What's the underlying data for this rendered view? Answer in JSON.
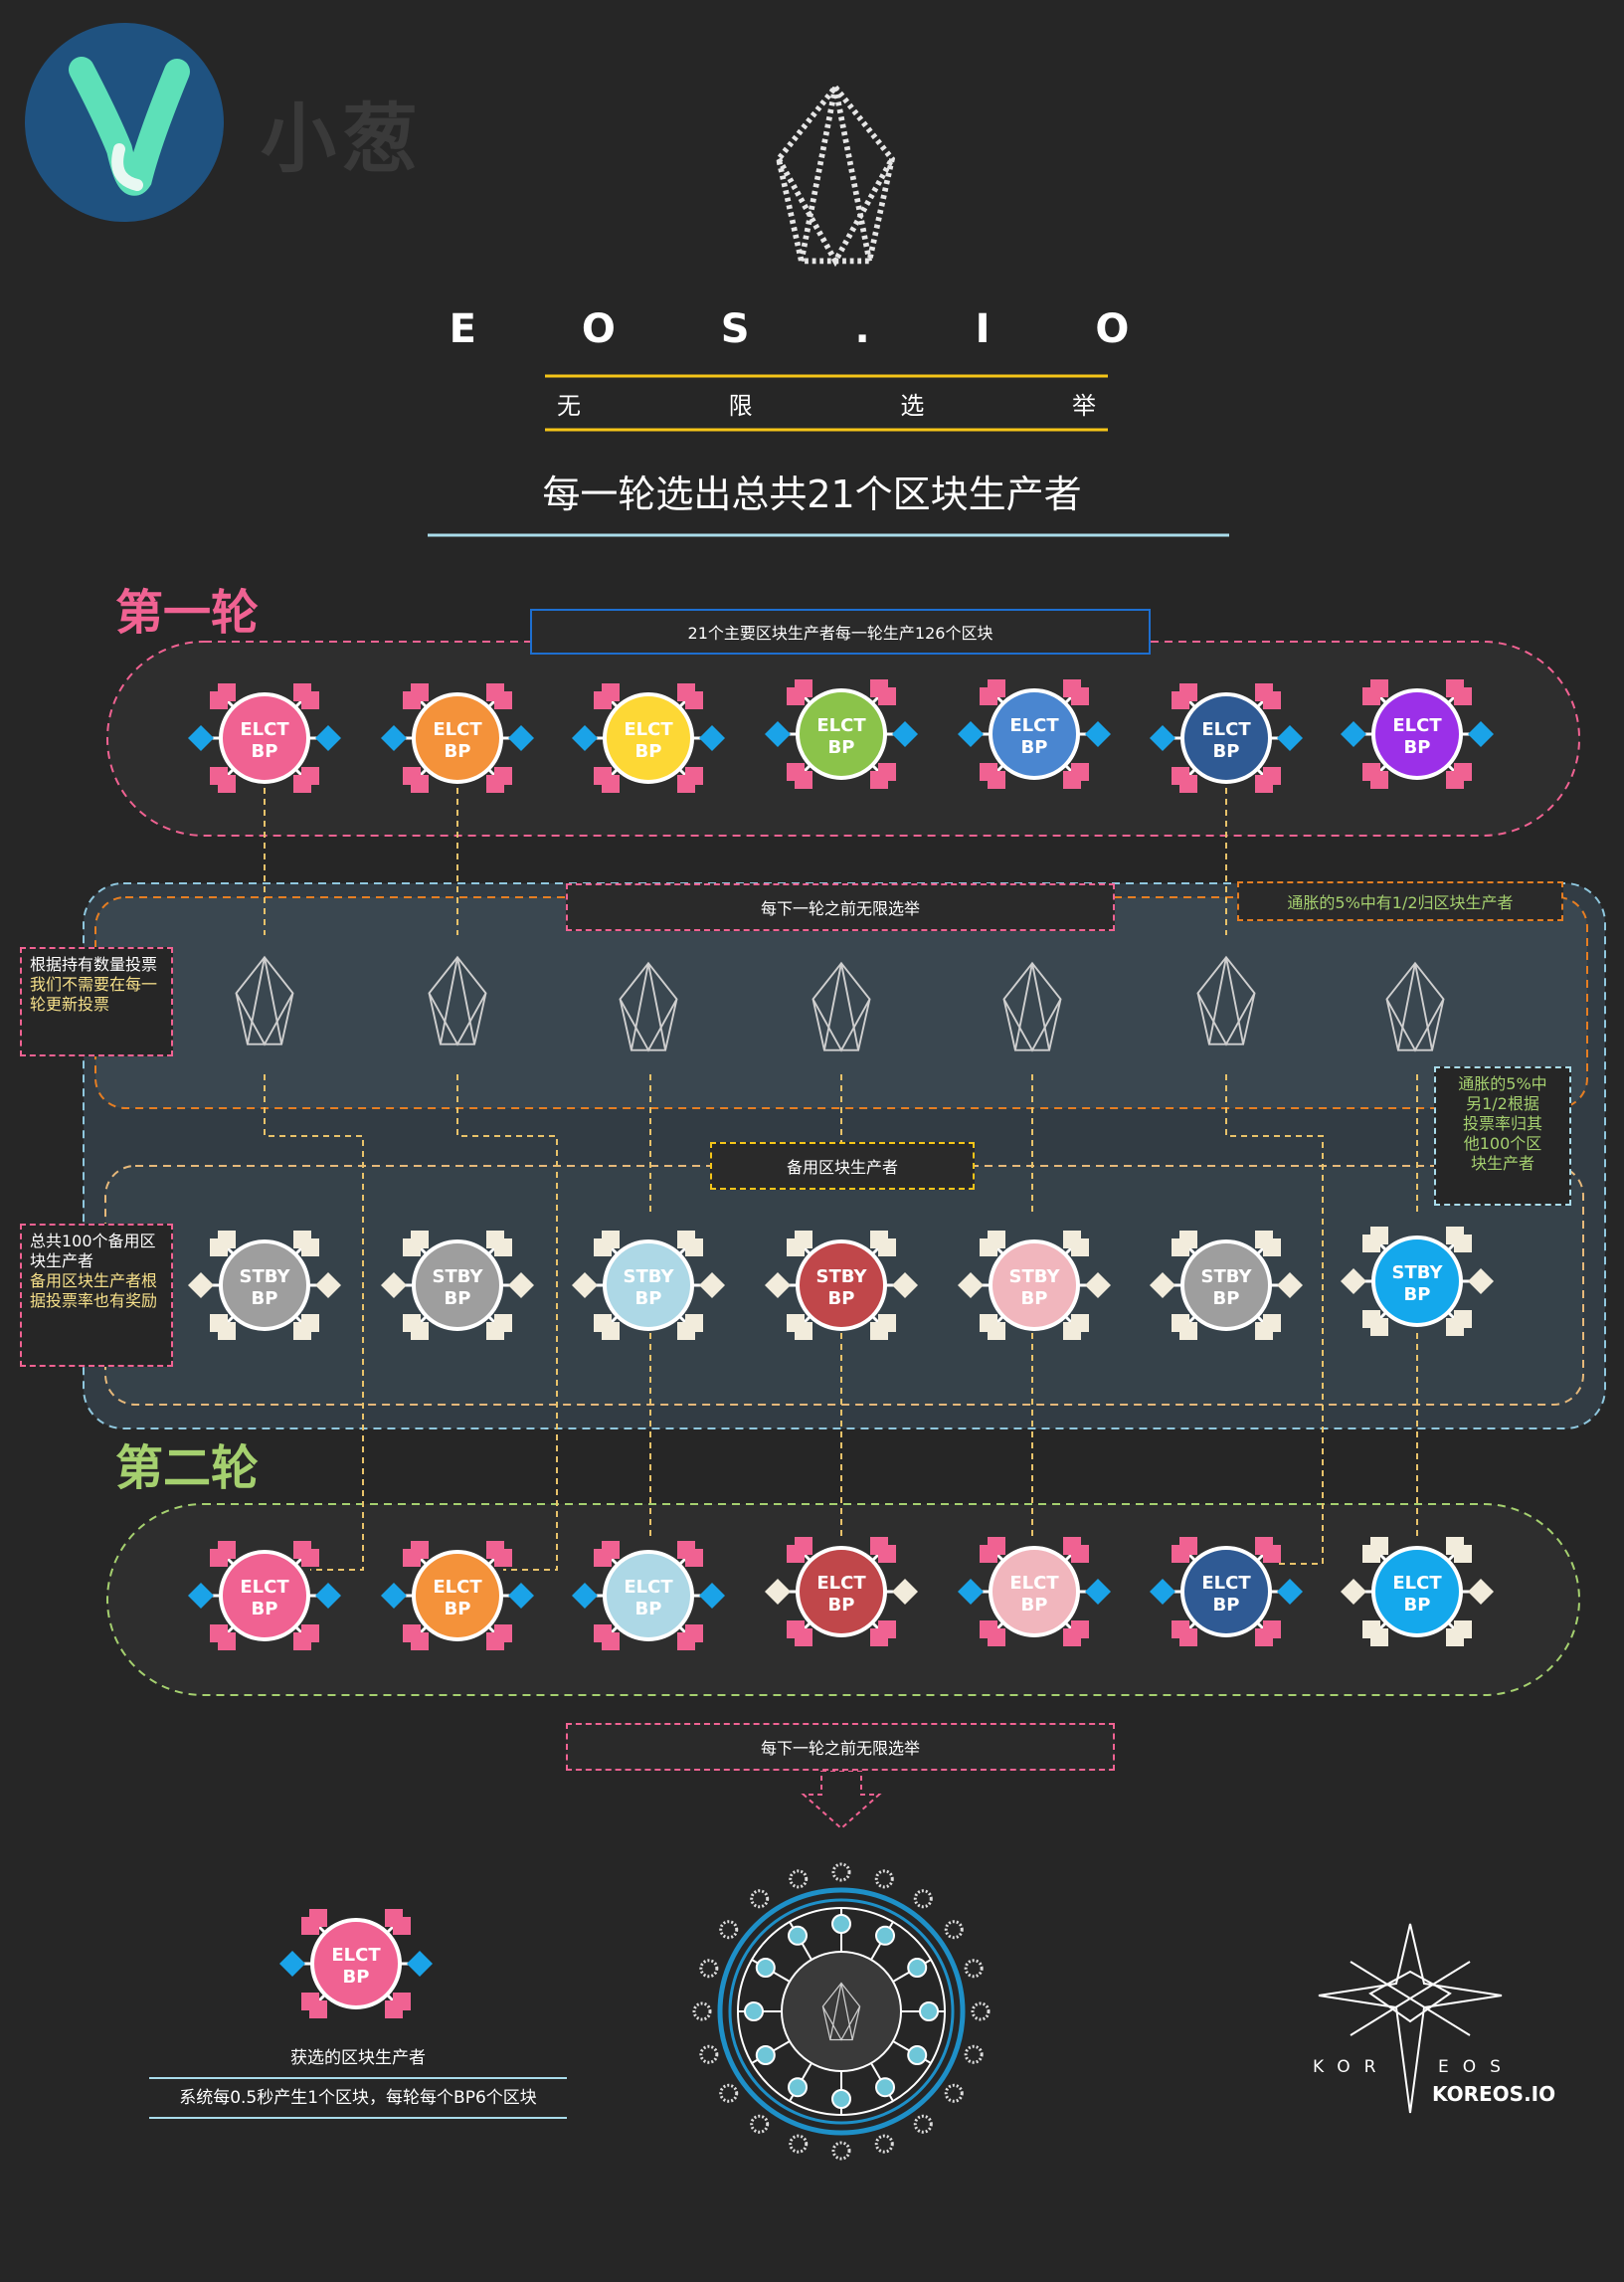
{
  "brand": {
    "name": "小葱"
  },
  "header": {
    "eos_title": "E O S . I O",
    "subtitle_chars": [
      "无",
      "限",
      "选",
      "举"
    ],
    "headline": "每一轮选出总共21个区块生产者"
  },
  "round1": {
    "title": "第一轮",
    "banner": "21个主要区块生产者每一轮生产126个区块",
    "nodes": [
      {
        "l1": "ELCT",
        "l2": "BP",
        "color": "#f06292",
        "arm": "#f06292",
        "side": "#1aa3e8"
      },
      {
        "l1": "ELCT",
        "l2": "BP",
        "color": "#f4923a",
        "arm": "#f06292",
        "side": "#1aa3e8"
      },
      {
        "l1": "ELCT",
        "l2": "BP",
        "color": "#fdd835",
        "arm": "#f06292",
        "side": "#1aa3e8"
      },
      {
        "l1": "ELCT",
        "l2": "BP",
        "color": "#8bc34a",
        "arm": "#f06292",
        "side": "#1aa3e8"
      },
      {
        "l1": "ELCT",
        "l2": "BP",
        "color": "#4a86d0",
        "arm": "#f06292",
        "side": "#1aa3e8"
      },
      {
        "l1": "ELCT",
        "l2": "BP",
        "color": "#2f5a94",
        "arm": "#f06292",
        "side": "#1aa3e8"
      },
      {
        "l1": "ELCT",
        "l2": "BP",
        "color": "#9b30e8",
        "arm": "#f06292",
        "side": "#1aa3e8"
      }
    ]
  },
  "middle": {
    "vote_banner": "每下一轮之前无限选举",
    "inflation_banner": "通胀的5%中有1/2归区块生产者",
    "left_note_vote": {
      "l1": "根据持有数量投票",
      "l2": "我们不需要在每一",
      "l3": "轮更新投票"
    },
    "right_note_inflation": {
      "l1": "通胀的5%中",
      "l2": "另1/2根据",
      "l3": "投票率归其",
      "l4": "他100个区",
      "l5": "块生产者"
    },
    "standby_banner": "备用区块生产者",
    "left_note_standby": {
      "l1": "总共100个备用区",
      "l2": "块生产者",
      "l3": "备用区块生产者根",
      "l4": "据投票率也有奖励"
    }
  },
  "standby": {
    "nodes": [
      {
        "l1": "STBY",
        "l2": "BP",
        "color": "#9e9e9e",
        "arm": "#f2ecdc",
        "side": "#f2ecdc"
      },
      {
        "l1": "STBY",
        "l2": "BP",
        "color": "#9e9e9e",
        "arm": "#f2ecdc",
        "side": "#f2ecdc"
      },
      {
        "l1": "STBY",
        "l2": "BP",
        "color": "#add8e6",
        "arm": "#f2ecdc",
        "side": "#f2ecdc"
      },
      {
        "l1": "STBY",
        "l2": "BP",
        "color": "#c0474a",
        "arm": "#f2ecdc",
        "side": "#f2ecdc"
      },
      {
        "l1": "STBY",
        "l2": "BP",
        "color": "#f1b6bd",
        "arm": "#f2ecdc",
        "side": "#f2ecdc"
      },
      {
        "l1": "STBY",
        "l2": "BP",
        "color": "#9e9e9e",
        "arm": "#f2ecdc",
        "side": "#f2ecdc"
      },
      {
        "l1": "STBY",
        "l2": "BP",
        "color": "#14a8ec",
        "arm": "#f2ecdc",
        "side": "#f2ecdc"
      }
    ]
  },
  "round2": {
    "title": "第二轮",
    "nodes": [
      {
        "l1": "ELCT",
        "l2": "BP",
        "color": "#f06292",
        "arm": "#f06292",
        "side": "#1aa3e8"
      },
      {
        "l1": "ELCT",
        "l2": "BP",
        "color": "#f4923a",
        "arm": "#f06292",
        "side": "#1aa3e8"
      },
      {
        "l1": "ELCT",
        "l2": "BP",
        "color": "#add8e6",
        "arm": "#f06292",
        "side": "#1aa3e8"
      },
      {
        "l1": "ELCT",
        "l2": "BP",
        "color": "#c0474a",
        "arm": "#f06292",
        "side": "#f2ecdc"
      },
      {
        "l1": "ELCT",
        "l2": "BP",
        "color": "#f1b6bd",
        "arm": "#f06292",
        "side": "#1aa3e8"
      },
      {
        "l1": "ELCT",
        "l2": "BP",
        "color": "#2f5a94",
        "arm": "#f06292",
        "side": "#1aa3e8"
      },
      {
        "l1": "ELCT",
        "l2": "BP",
        "color": "#14a8ec",
        "arm": "#f2ecdc",
        "side": "#f2ecdc"
      }
    ],
    "vote_banner": "每下一轮之前无限选举"
  },
  "legend": {
    "node": {
      "l1": "ELCT",
      "l2": "BP",
      "color": "#f06292",
      "arm": "#f06292",
      "side": "#1aa3e8"
    },
    "caption": "获选的区块生产者",
    "description": "系统每0.5秒产生1个区块，每轮每个BP6个区块"
  },
  "koreos": {
    "left": "KOR",
    "right": "EOS",
    "io": "KOREOS.IO"
  }
}
